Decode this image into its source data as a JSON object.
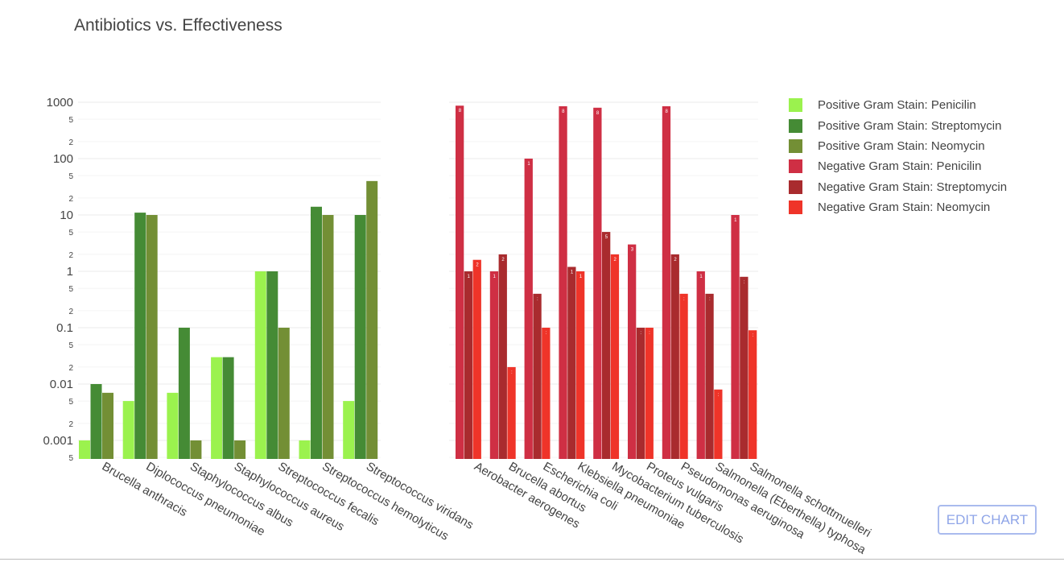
{
  "title": "Antibiotics vs. Effectiveness",
  "edit_button": "EDIT CHART",
  "legend": [
    {
      "label": "Positive Gram Stain: Penicilin",
      "color": "#9bf24e"
    },
    {
      "label": "Positive Gram Stain: Streptomycin",
      "color": "#458b35"
    },
    {
      "label": "Positive Gram Stain: Neomycin",
      "color": "#738f35"
    },
    {
      "label": "Negative Gram Stain: Penicilin",
      "color": "#cf2f44"
    },
    {
      "label": "Negative Gram Stain: Streptomycin",
      "color": "#a92b2e"
    },
    {
      "label": "Negative Gram Stain: Neomycin",
      "color": "#ef3429"
    }
  ],
  "chart_data": [
    {
      "type": "bar",
      "yscale": "log",
      "ylim": [
        0.0005,
        1500
      ],
      "ytick_major": [
        "0.001",
        "0.01",
        "0.1",
        "1",
        "10",
        "100",
        "1000"
      ],
      "ytick_minor": [
        "5",
        "2",
        "5",
        "2",
        "5",
        "2",
        "5",
        "2",
        "5",
        "2",
        "5",
        "2",
        "5"
      ],
      "categories": [
        "Brucella anthracis",
        "Diplococcus pneumoniae",
        "Staphylococcus albus",
        "Staphylococcus aureus",
        "Streptococcus fecalis",
        "Streptococcus hemolyticus",
        "Streptococcus viridans"
      ],
      "series": [
        {
          "name": "Positive Gram Stain: Penicilin",
          "values": [
            0.001,
            0.005,
            0.007,
            0.03,
            1,
            0.001,
            0.005
          ]
        },
        {
          "name": "Positive Gram Stain: Streptomycin",
          "values": [
            0.01,
            11,
            0.1,
            0.03,
            1,
            14,
            10
          ]
        },
        {
          "name": "Positive Gram Stain: Neomycin",
          "values": [
            0.007,
            10,
            0.001,
            0.001,
            0.1,
            10,
            40
          ]
        }
      ]
    },
    {
      "type": "bar",
      "yscale": "log",
      "ylim": [
        0.0005,
        1500
      ],
      "categories": [
        "Aerobacter aerogenes",
        "Brucella abortus",
        "Escherichia coli",
        "Klebsiella pneumoniae",
        "Mycobacterium tuberculosis",
        "Proteus vulgaris",
        "Pseudomonas aeruginosa",
        "Salmonella (Eberthella) typhosa",
        "Salmonella schottmuelleri"
      ],
      "series": [
        {
          "name": "Negative Gram Stain: Penicilin",
          "values": [
            870,
            1,
            100,
            850,
            800,
            3,
            850,
            1,
            10
          ]
        },
        {
          "name": "Negative Gram Stain: Streptomycin",
          "values": [
            1,
            2,
            0.4,
            1.2,
            5,
            0.1,
            2,
            0.4,
            0.8
          ]
        },
        {
          "name": "Negative Gram Stain: Neomycin",
          "values": [
            1.6,
            0.02,
            0.1,
            1,
            2,
            0.1,
            0.4,
            0.008,
            0.09
          ]
        }
      ]
    }
  ]
}
